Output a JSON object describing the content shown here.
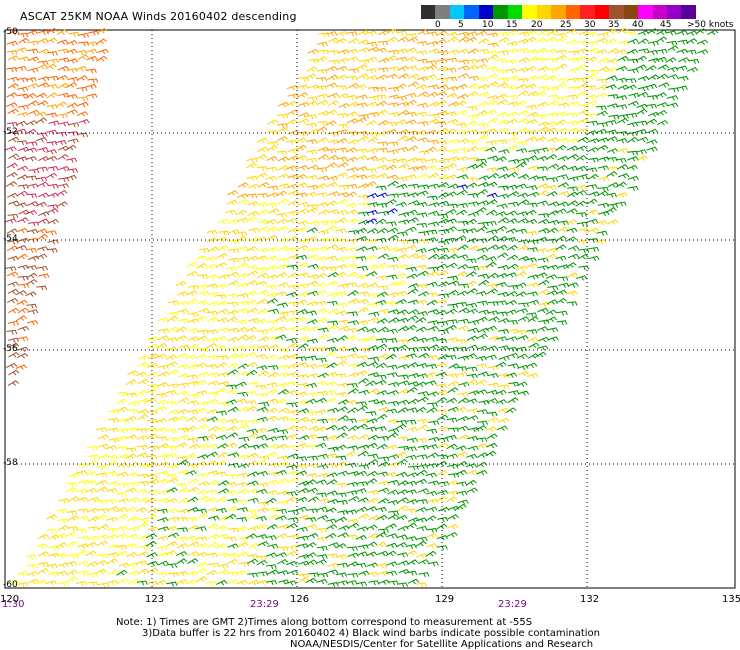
{
  "title": "ASCAT 25KM NOAA Winds 20160402 descending",
  "legend": {
    "labels": [
      "0",
      "5",
      "10",
      "15",
      "20",
      "25",
      "30",
      "35",
      "40",
      "45",
      ">50 knots"
    ],
    "colors": [
      "#303030",
      "#7f7f7f",
      "#00c8ff",
      "#0064ff",
      "#0000c8",
      "#009600",
      "#00dc00",
      "#ffff00",
      "#ffd700",
      "#ffa500",
      "#ff6400",
      "#ff2020",
      "#ff0000",
      "#a0522d",
      "#8b4513",
      "#ff00ff",
      "#c800c8",
      "#9600c8",
      "#5a0096"
    ]
  },
  "map": {
    "lat_labels": [
      "-50",
      "-52",
      "-54",
      "-56",
      "-58",
      "-60"
    ],
    "lon_labels": [
      "120",
      "123",
      "126",
      "129",
      "132",
      "135"
    ],
    "time_labels": [
      "1:30",
      "23:29",
      "23:29"
    ],
    "lon_range": [
      120,
      135
    ],
    "lat_range": [
      -60,
      -50
    ],
    "grid": true
  },
  "notes": {
    "line1": "Note: 1) Times are GMT 2)Times along bottom correspond to measurement at -55S",
    "line2": "3)Data buffer is 22 hrs from 20160402 4) Black wind barbs indicate possible contamination",
    "line3": "NOAA/NESDIS/Center for Satellite Applications and Research"
  }
}
